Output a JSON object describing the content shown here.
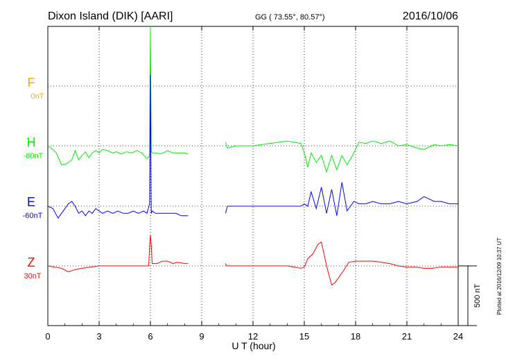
{
  "header": {
    "station": "Dixon Island (DIK)  [AARI]",
    "coords": "GG ( 73.55°,  80.57°)",
    "date": "2016/10/06"
  },
  "footer_note": "Plotted at 2016/12/09 10:37 UT",
  "scale_label": "500 nT",
  "colors": {
    "F": "#ffa500",
    "H": "#00ee00",
    "E": "#0000ff",
    "Z": "#ff0000",
    "grid": "#000000"
  },
  "chart_data": {
    "type": "line",
    "title": "Dixon Island (DIK)  [AARI]",
    "xlabel": "U T (hour)",
    "xlim": [
      0,
      24
    ],
    "xticks": [
      0,
      3,
      6,
      9,
      12,
      15,
      18,
      21,
      24
    ],
    "xtick_labels": [
      "0",
      "3",
      "6",
      "9",
      "12",
      "15",
      "18",
      "21",
      "24"
    ],
    "grid": true,
    "scale_bar_nT": 500,
    "series": [
      {
        "name": "F",
        "baseline_label": "0nT",
        "baseline_nT": 0,
        "values": []
      },
      {
        "name": "H",
        "baseline_label": "-80nT",
        "baseline_nT": -80,
        "points": [
          [
            0,
            0
          ],
          [
            0.2,
            -20
          ],
          [
            0.5,
            -60
          ],
          [
            0.8,
            -160
          ],
          [
            1.1,
            -150
          ],
          [
            1.4,
            -120
          ],
          [
            1.6,
            -40
          ],
          [
            1.8,
            -120
          ],
          [
            2,
            -80
          ],
          [
            2.2,
            -50
          ],
          [
            2.4,
            -100
          ],
          [
            2.6,
            -60
          ],
          [
            2.8,
            -40
          ],
          [
            3,
            -60
          ],
          [
            3.2,
            -30
          ],
          [
            3.5,
            -40
          ],
          [
            3.8,
            -60
          ],
          [
            4,
            -50
          ],
          [
            4.3,
            -70
          ],
          [
            4.6,
            -50
          ],
          [
            4.9,
            -60
          ],
          [
            5.2,
            -40
          ],
          [
            5.5,
            -60
          ],
          [
            5.8,
            -110
          ],
          [
            5.95,
            -80
          ],
          [
            6.0,
            1100
          ],
          [
            6.05,
            -40
          ],
          [
            6.1,
            -60
          ],
          [
            6.3,
            -60
          ],
          [
            6.6,
            -70
          ],
          [
            7,
            -40
          ],
          [
            7.3,
            -60
          ],
          [
            7.6,
            -60
          ],
          [
            8.0,
            -60
          ],
          [
            8.2,
            -70
          ],
          [
            10.4,
            30
          ],
          [
            10.5,
            -20
          ],
          [
            11,
            0
          ],
          [
            12,
            0
          ],
          [
            13,
            20
          ],
          [
            14,
            40
          ],
          [
            14.8,
            20
          ],
          [
            15.0,
            -60
          ],
          [
            15.2,
            -180
          ],
          [
            15.4,
            -60
          ],
          [
            15.7,
            -140
          ],
          [
            16.0,
            -80
          ],
          [
            16.3,
            -220
          ],
          [
            16.6,
            -80
          ],
          [
            16.9,
            -200
          ],
          [
            17.2,
            -80
          ],
          [
            17.5,
            -160
          ],
          [
            17.9,
            -60
          ],
          [
            18.2,
            30
          ],
          [
            18.6,
            20
          ],
          [
            19,
            40
          ],
          [
            19.5,
            20
          ],
          [
            20,
            40
          ],
          [
            20.5,
            0
          ],
          [
            21,
            10
          ],
          [
            21.6,
            -20
          ],
          [
            22,
            -30
          ],
          [
            22.6,
            10
          ],
          [
            23,
            0
          ],
          [
            23.5,
            10
          ],
          [
            24,
            0
          ]
        ]
      },
      {
        "name": "E",
        "baseline_label": "-60nT",
        "baseline_nT": -60,
        "points": [
          [
            0,
            0
          ],
          [
            0.3,
            -20
          ],
          [
            0.6,
            -100
          ],
          [
            0.9,
            -40
          ],
          [
            1.2,
            20
          ],
          [
            1.4,
            40
          ],
          [
            1.6,
            0
          ],
          [
            1.8,
            -60
          ],
          [
            2,
            -40
          ],
          [
            2.2,
            -80
          ],
          [
            2.4,
            -40
          ],
          [
            2.6,
            -60
          ],
          [
            2.8,
            -20
          ],
          [
            3,
            -40
          ],
          [
            3.2,
            -60
          ],
          [
            3.5,
            -40
          ],
          [
            3.8,
            -60
          ],
          [
            4.1,
            -40
          ],
          [
            4.4,
            -60
          ],
          [
            4.7,
            -60
          ],
          [
            5,
            -40
          ],
          [
            5.3,
            -60
          ],
          [
            5.6,
            -40
          ],
          [
            5.8,
            -60
          ],
          [
            5.95,
            20
          ],
          [
            6.0,
            1100
          ],
          [
            6.05,
            -60
          ],
          [
            6.1,
            -40
          ],
          [
            6.3,
            -60
          ],
          [
            6.6,
            -60
          ],
          [
            6.9,
            -60
          ],
          [
            7.2,
            -60
          ],
          [
            7.5,
            -60
          ],
          [
            7.8,
            -80
          ],
          [
            8.2,
            -80
          ],
          [
            10.4,
            -60
          ],
          [
            10.5,
            0
          ],
          [
            11,
            0
          ],
          [
            12,
            0
          ],
          [
            13,
            0
          ],
          [
            14,
            0
          ],
          [
            14.8,
            0
          ],
          [
            15.0,
            20
          ],
          [
            15.2,
            0
          ],
          [
            15.4,
            120
          ],
          [
            15.7,
            -20
          ],
          [
            16.0,
            160
          ],
          [
            16.3,
            -60
          ],
          [
            16.6,
            140
          ],
          [
            16.9,
            -80
          ],
          [
            17.2,
            200
          ],
          [
            17.5,
            -40
          ],
          [
            17.9,
            40
          ],
          [
            18.2,
            20
          ],
          [
            18.6,
            20
          ],
          [
            19,
            40
          ],
          [
            19.5,
            20
          ],
          [
            20,
            20
          ],
          [
            20.5,
            40
          ],
          [
            21,
            20
          ],
          [
            21.6,
            40
          ],
          [
            22,
            80
          ],
          [
            22.6,
            40
          ],
          [
            23,
            40
          ],
          [
            23.5,
            20
          ],
          [
            24,
            20
          ]
        ]
      },
      {
        "name": "Z",
        "baseline_label": "30nT",
        "baseline_nT": 30,
        "points": [
          [
            0,
            0
          ],
          [
            0.4,
            -10
          ],
          [
            0.8,
            -20
          ],
          [
            1.2,
            -50
          ],
          [
            1.6,
            -30
          ],
          [
            2,
            -20
          ],
          [
            2.5,
            -10
          ],
          [
            3,
            0
          ],
          [
            3.5,
            0
          ],
          [
            4,
            0
          ],
          [
            4.5,
            0
          ],
          [
            5,
            0
          ],
          [
            5.5,
            0
          ],
          [
            5.9,
            0
          ],
          [
            5.95,
            160
          ],
          [
            6.0,
            260
          ],
          [
            6.05,
            180
          ],
          [
            6.1,
            20
          ],
          [
            6.4,
            20
          ],
          [
            6.7,
            40
          ],
          [
            7,
            40
          ],
          [
            7.3,
            20
          ],
          [
            7.6,
            30
          ],
          [
            8.0,
            20
          ],
          [
            8.2,
            20
          ],
          [
            10.4,
            20
          ],
          [
            10.45,
            0
          ],
          [
            11,
            0
          ],
          [
            12,
            0
          ],
          [
            13,
            0
          ],
          [
            14,
            0
          ],
          [
            14.8,
            -20
          ],
          [
            15.0,
            -10
          ],
          [
            15.2,
            60
          ],
          [
            15.5,
            100
          ],
          [
            15.8,
            180
          ],
          [
            16.0,
            200
          ],
          [
            16.3,
            0
          ],
          [
            16.6,
            -160
          ],
          [
            16.8,
            -140
          ],
          [
            17.0,
            -100
          ],
          [
            17.3,
            -40
          ],
          [
            17.6,
            30
          ],
          [
            18,
            40
          ],
          [
            19,
            40
          ],
          [
            19.5,
            30
          ],
          [
            20,
            20
          ],
          [
            20.5,
            0
          ],
          [
            21,
            -10
          ],
          [
            21.5,
            -10
          ],
          [
            22,
            -20
          ],
          [
            22.5,
            -20
          ],
          [
            23,
            -10
          ],
          [
            23.5,
            -10
          ],
          [
            24,
            -10
          ]
        ]
      }
    ]
  }
}
